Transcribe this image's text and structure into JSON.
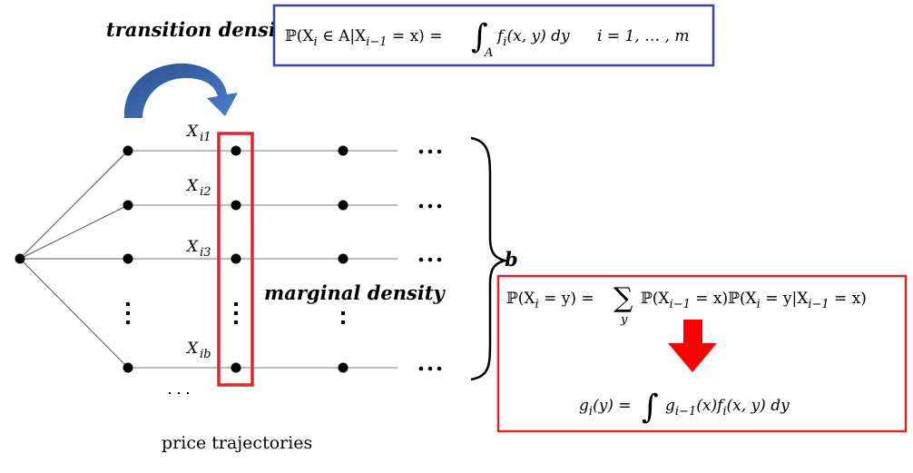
{
  "labels": {
    "transition_density": "transition density",
    "marginal_density": "marginal density",
    "b": "b",
    "price_trajectories": "price trajectories",
    "ellipsis": "…"
  },
  "nodes": {
    "x_labels": [
      {
        "base": "X",
        "sub": "i1"
      },
      {
        "base": "X",
        "sub": "i2"
      },
      {
        "base": "X",
        "sub": "i3"
      },
      {
        "base": "X",
        "sub": "ib"
      }
    ]
  },
  "formulas": {
    "transition": {
      "prob_lhs": "ℙ(X",
      "prob_lhs_sub": "i",
      "prob_mid": " ∈ A|X",
      "prob_mid_sub": "i−1",
      "prob_rhs": " = x) = ",
      "integral": "∫",
      "int_sub": "A",
      "integrand": "f",
      "integrand_sub": "i",
      "integrand_rest": "(x, y) dy",
      "range": "i = 1, … , m"
    },
    "marginal": {
      "lhs": "ℙ(X",
      "lhs_sub": "i",
      "lhs_rest": " = y) = ",
      "sum": "∑",
      "sum_sub": "y",
      "rhs1": "ℙ(X",
      "rhs1_sub": "i−1",
      "rhs1_rest": " = x)ℙ(X",
      "rhs2_sub": "i",
      "rhs2_rest": " = y|X",
      "rhs3_sub": "i−1",
      "rhs3_rest": " = x)"
    },
    "recursion": {
      "g": "g",
      "g_sub": "i",
      "g_rest": "(y) = ",
      "integral": "∫",
      "g2": "g",
      "g2_sub": "i−1",
      "g2_rest": "(x)f",
      "f_sub": "i",
      "f_rest": "(x, y) dy"
    }
  },
  "colors": {
    "blue_box": "#3a3dbd",
    "red_box": "#e0242a",
    "arrow_blue": "#3d6fc0",
    "arrow_red": "#ff0000"
  }
}
